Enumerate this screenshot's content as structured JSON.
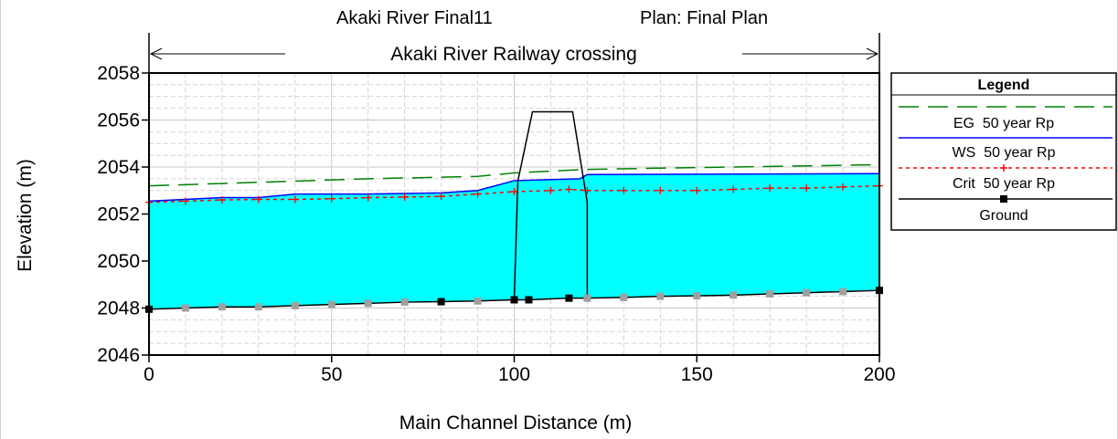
{
  "header": {
    "project": "Akaki River Final11",
    "plan": "Plan: Final Plan",
    "reach": "Akaki River Railway crossing"
  },
  "chart_data": {
    "type": "line",
    "title": "Akaki River Final11",
    "subtitle": "Plan: Final Plan",
    "xlabel": "Main Channel Distance (m)",
    "ylabel": "Elevation (m)",
    "xlim": [
      0,
      200
    ],
    "ylim": [
      2046,
      2058
    ],
    "xticks": [
      0,
      50,
      100,
      150,
      200
    ],
    "yticks": [
      2046,
      2048,
      2050,
      2052,
      2054,
      2056,
      2058
    ],
    "x_tick_labels": [
      "0",
      "50",
      "100",
      "150",
      "200"
    ],
    "y_tick_labels": [
      "2046",
      "2048",
      "2050",
      "2052",
      "2054",
      "2056",
      "2058"
    ],
    "grid": true,
    "legend_position": "right",
    "legend_title": "Legend",
    "series": [
      {
        "name": "EG  50 year Rp",
        "style": "long-dash",
        "color": "#008000",
        "points": [
          [
            0,
            2053.2
          ],
          [
            30,
            2053.35
          ],
          [
            60,
            2053.5
          ],
          [
            90,
            2053.6
          ],
          [
            100,
            2053.75
          ],
          [
            120,
            2053.9
          ],
          [
            200,
            2054.1
          ]
        ]
      },
      {
        "name": "WS  50 year Rp",
        "style": "solid",
        "color": "#0000ff",
        "points": [
          [
            0,
            2052.55
          ],
          [
            20,
            2052.7
          ],
          [
            30,
            2052.7
          ],
          [
            40,
            2052.85
          ],
          [
            60,
            2052.85
          ],
          [
            80,
            2052.9
          ],
          [
            90,
            2053.0
          ],
          [
            100,
            2053.42
          ],
          [
            118,
            2053.5
          ],
          [
            120,
            2053.68
          ],
          [
            200,
            2053.72
          ]
        ]
      },
      {
        "name": "Crit  50 year Rp",
        "style": "dotted-plus",
        "color": "#ff0000",
        "points": [
          [
            0,
            2052.5
          ],
          [
            10,
            2052.55
          ],
          [
            20,
            2052.6
          ],
          [
            30,
            2052.62
          ],
          [
            40,
            2052.62
          ],
          [
            50,
            2052.65
          ],
          [
            60,
            2052.7
          ],
          [
            70,
            2052.72
          ],
          [
            80,
            2052.75
          ],
          [
            90,
            2052.85
          ],
          [
            100,
            2052.95
          ],
          [
            110,
            2053.0
          ],
          [
            115,
            2053.05
          ],
          [
            120,
            2053.0
          ],
          [
            130,
            2053.0
          ],
          [
            140,
            2053.0
          ],
          [
            150,
            2053.0
          ],
          [
            160,
            2053.05
          ],
          [
            170,
            2053.1
          ],
          [
            180,
            2053.1
          ],
          [
            190,
            2053.15
          ],
          [
            200,
            2053.2
          ]
        ]
      },
      {
        "name": "Ground",
        "style": "solid-square",
        "color": "#000000",
        "points": [
          [
            0,
            2047.95
          ],
          [
            10,
            2048.0
          ],
          [
            20,
            2048.05
          ],
          [
            30,
            2048.05
          ],
          [
            40,
            2048.1
          ],
          [
            50,
            2048.15
          ],
          [
            60,
            2048.2
          ],
          [
            70,
            2048.25
          ],
          [
            80,
            2048.27
          ],
          [
            90,
            2048.3
          ],
          [
            100,
            2048.35
          ],
          [
            104,
            2048.35
          ],
          [
            115,
            2048.42
          ],
          [
            120,
            2048.42
          ],
          [
            130,
            2048.45
          ],
          [
            140,
            2048.5
          ],
          [
            150,
            2048.52
          ],
          [
            160,
            2048.55
          ],
          [
            170,
            2048.6
          ],
          [
            180,
            2048.65
          ],
          [
            190,
            2048.7
          ],
          [
            200,
            2048.75
          ]
        ]
      }
    ],
    "bridge_deck": [
      [
        100,
        2048.35
      ],
      [
        101,
        2053.4
      ],
      [
        105,
        2056.35
      ],
      [
        116,
        2056.35
      ],
      [
        120,
        2052.5
      ],
      [
        120,
        2048.42
      ]
    ]
  },
  "colors": {
    "water_fill": "#00ffff",
    "grid": "#c8c8c8",
    "ground_marker_gray": "#a0a0a0"
  }
}
